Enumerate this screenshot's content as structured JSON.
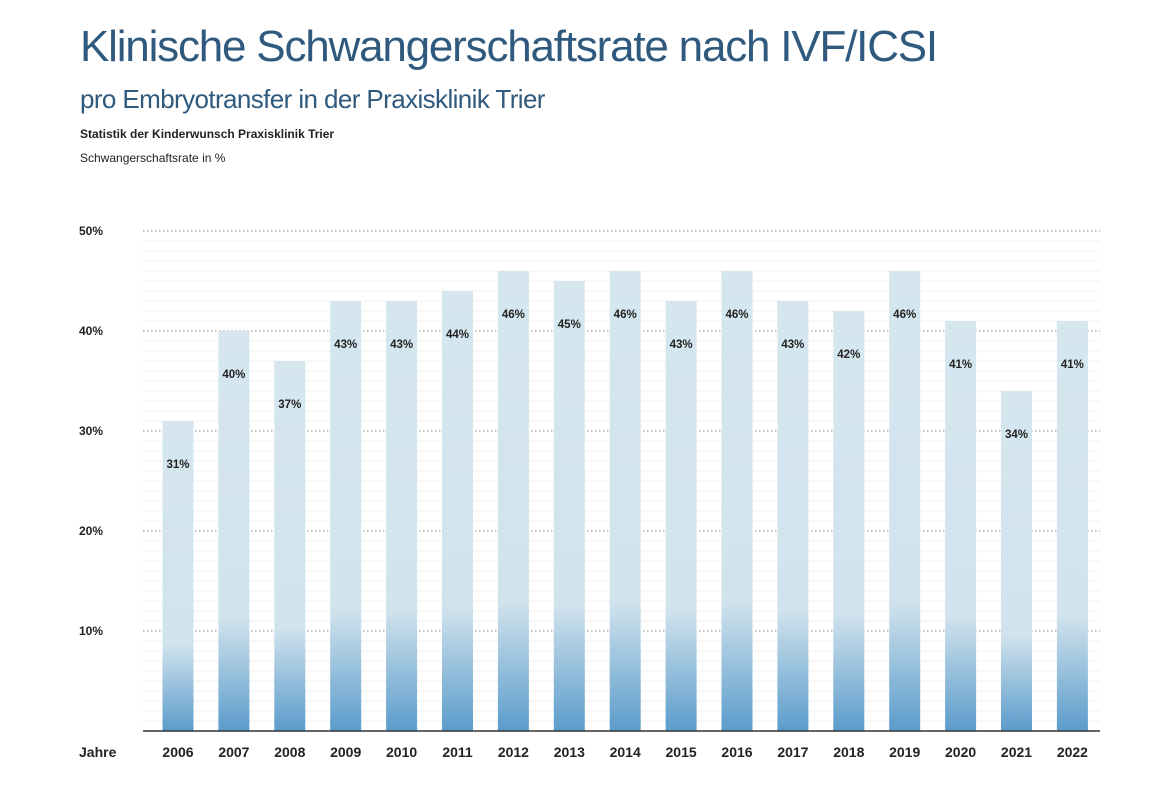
{
  "header": {
    "title": "Klinische Schwangerschaftsrate nach IVF/ICSI",
    "subtitle": "pro Embryotransfer in der Praxisklinik Trier",
    "source": "Statistik der Kinderwunsch Praxisklinik Trier",
    "unit_label": "Schwangerschaftsrate in %"
  },
  "chart_data": {
    "type": "bar",
    "title": "Klinische Schwangerschaftsrate nach IVF/ICSI",
    "subtitle": "pro Embryotransfer in der Praxisklinik Trier",
    "xlabel": "Jahre",
    "ylabel": "Schwangerschaftsrate in %",
    "categories": [
      "2006",
      "2007",
      "2008",
      "2009",
      "2010",
      "2011",
      "2012",
      "2013",
      "2014",
      "2015",
      "2016",
      "2017",
      "2018",
      "2019",
      "2020",
      "2021",
      "2022"
    ],
    "values": [
      31,
      40,
      37,
      43,
      43,
      44,
      46,
      45,
      46,
      43,
      46,
      43,
      42,
      46,
      41,
      34,
      41
    ],
    "data_labels": [
      "31%",
      "40%",
      "37%",
      "43%",
      "43%",
      "44%",
      "46%",
      "45%",
      "46%",
      "43%",
      "46%",
      "43%",
      "42%",
      "46%",
      "41%",
      "34%",
      "41%"
    ],
    "ylim": [
      0,
      50
    ],
    "yticks": [
      10,
      20,
      30,
      40,
      50
    ],
    "ytick_labels": [
      "10%",
      "20%",
      "30%",
      "40%",
      "50%"
    ],
    "grid": true,
    "legend": "none",
    "colors": {
      "bar_top": "#d3e4ee",
      "bar_bottom": "#5b9ccb",
      "text": "#2f5a7e"
    }
  }
}
